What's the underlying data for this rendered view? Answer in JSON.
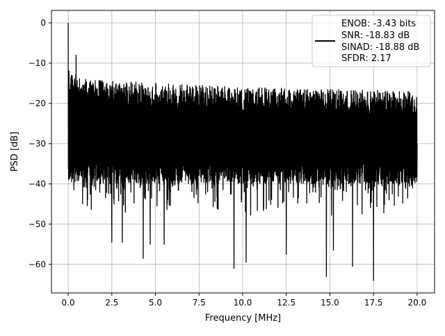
{
  "chart_data": {
    "type": "line",
    "title": "",
    "xlabel": "Frequency [MHz]",
    "ylabel": "PSD [dB]",
    "xlim": [
      -0.96,
      21.0
    ],
    "ylim": [
      -67.1,
      3.1
    ],
    "grid": true,
    "xticks": [
      0.0,
      2.5,
      5.0,
      7.5,
      10.0,
      12.5,
      15.0,
      17.5,
      20.0
    ],
    "xtick_labels": [
      "0.0",
      "2.5",
      "5.0",
      "7.5",
      "10.0",
      "12.5",
      "15.0",
      "17.5",
      "20.0"
    ],
    "yticks": [
      0,
      -10,
      -20,
      -30,
      -40,
      -50,
      -60
    ],
    "ytick_labels": [
      "0",
      "−10",
      "−20",
      "−30",
      "−40",
      "−50",
      "−60"
    ],
    "legend": {
      "placement": "top-right",
      "entries": [
        "ENOB: -3.43 bits",
        "SNR: -18.83 dB",
        "SINAD: -18.88 dB",
        "SFDR: 2.17"
      ]
    },
    "series": [
      {
        "name": "PSD",
        "color": "#000000",
        "x_range": [
          0,
          20
        ],
        "description_points": {
          "x": [
            0.0,
            0.05,
            0.45,
            1.0,
            2.5,
            3.1,
            4.3,
            4.7,
            5.5,
            9.5,
            10.2,
            12.5,
            14.8,
            15.2,
            16.3,
            17.5,
            20.0
          ],
          "y": [
            0.0,
            -12,
            -8,
            -14,
            -54.5,
            -54.5,
            -58.5,
            -55,
            -55,
            -61,
            -59.5,
            -57.5,
            -63,
            -56.5,
            -60.5,
            -64,
            -30
          ]
        },
        "upper_envelope": {
          "x": [
            0,
            1,
            5,
            10,
            15,
            20
          ],
          "y": [
            -12,
            -14,
            -15,
            -16,
            -16.5,
            -17
          ]
        },
        "typical_level": -27,
        "typical_lower": -40
      }
    ]
  }
}
